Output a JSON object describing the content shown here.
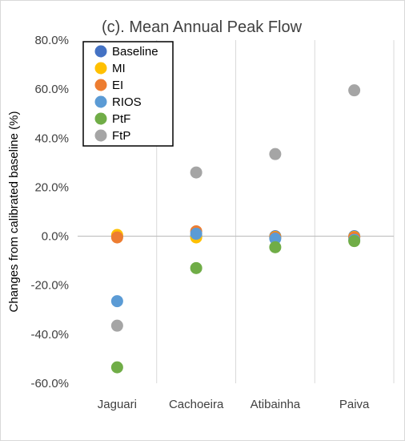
{
  "chart_data": {
    "type": "scatter",
    "title": "(c). Mean Annual Peak Flow",
    "xlabel": "",
    "ylabel": "Changes from calibrated baseline (%)",
    "categories": [
      "Jaguari",
      "Cachoeira",
      "Atibainha",
      "Paiva"
    ],
    "ylim": [
      -60,
      80
    ],
    "yticks": [
      80,
      60,
      40,
      20,
      0,
      -20,
      -40,
      -60
    ],
    "ytick_labels": [
      "80.0%",
      "60.0%",
      "40.0%",
      "20.0%",
      "0.0%",
      "-20.0%",
      "-40.0%",
      "-60.0%"
    ],
    "grid": "vertical",
    "legend_position": "top-left",
    "series": [
      {
        "name": "Baseline",
        "color": "#4472c4",
        "values": [
          0,
          0,
          0,
          0
        ]
      },
      {
        "name": "MI",
        "color": "#ffc000",
        "values": [
          0.5,
          -0.5,
          -0.3,
          -0.3
        ]
      },
      {
        "name": "EI",
        "color": "#ed7d31",
        "values": [
          -0.5,
          2.0,
          -0.5,
          -0.5
        ]
      },
      {
        "name": "RIOS",
        "color": "#5b9bd5",
        "values": [
          -26.5,
          1.0,
          -1.0,
          -1.5
        ]
      },
      {
        "name": "PtF",
        "color": "#70ad47",
        "values": [
          -53.5,
          -13.0,
          -4.5,
          -2.0
        ]
      },
      {
        "name": "FtP",
        "color": "#a5a5a5",
        "values": [
          -36.5,
          26.0,
          33.5,
          59.5
        ]
      }
    ]
  }
}
